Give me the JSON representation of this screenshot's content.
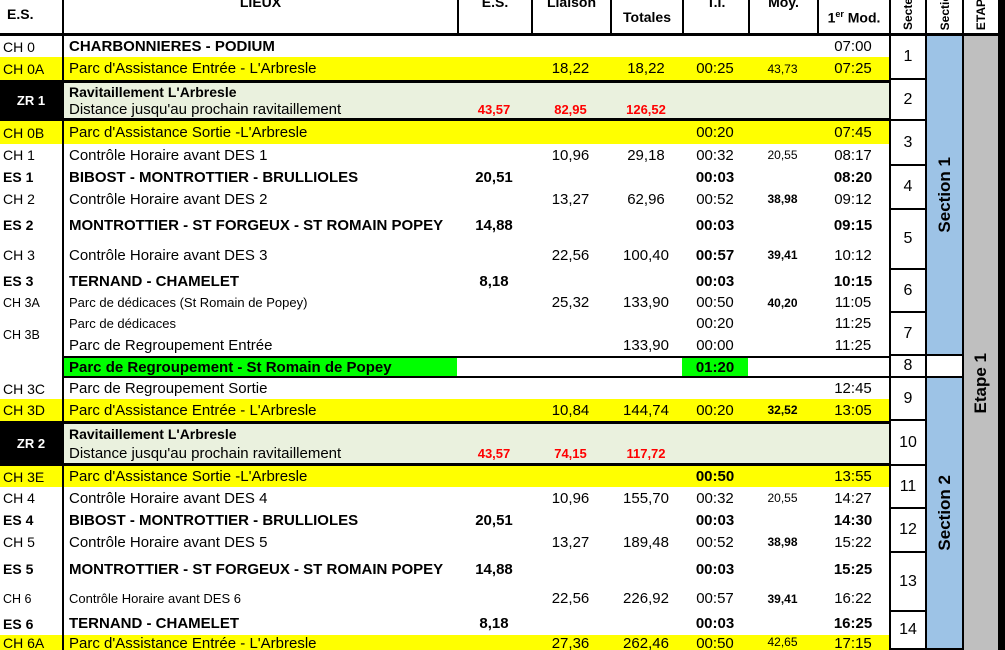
{
  "header": {
    "code": "E.S.",
    "lieux": "LIEUX",
    "es": "E.S.",
    "liaison": "Liaison",
    "totales": "Totales",
    "ti": "T.I.",
    "moy": "Moy.",
    "mod_num": "1",
    "mod_sup": "er",
    "mod_rest": " Mod.",
    "secteur": "Secteur",
    "section": "Section",
    "etape": "ETAPE"
  },
  "rows": [
    {
      "code": "CH 0",
      "lieux": "CHARBONNIERES - PODIUM",
      "mod": "07:00"
    },
    {
      "code": "CH 0A",
      "lieux": "Parc d'Assistance Entrée - L'Arbresle",
      "liaison": "18,22",
      "totales": "18,22",
      "ti": "00:25",
      "moy": "43,73",
      "mod": "07:25"
    },
    {
      "code": "ZR 1",
      "lieux": "Ravitaillement L'Arbresle",
      "lieux2": "Distance jusqu'au prochain ravitaillement",
      "es2": "43,57",
      "liaison2": "82,95",
      "totales2": "126,52"
    },
    {
      "code": "CH 0B",
      "lieux": "Parc d'Assistance Sortie -L'Arbresle",
      "ti": "00:20",
      "mod": "07:45"
    },
    {
      "code": "CH 1",
      "lieux": "Contrôle Horaire avant DES 1",
      "liaison": "10,96",
      "totales": "29,18",
      "ti": "00:32",
      "moy": "20,55",
      "mod": "08:17"
    },
    {
      "code": "ES 1",
      "lieux": "BIBOST - MONTROTTIER - BRULLIOLES",
      "es": "20,51",
      "ti": "00:03",
      "mod": "08:20"
    },
    {
      "code": "CH 2",
      "lieux": "Contrôle Horaire avant DES 2",
      "liaison": "13,27",
      "totales": "62,96",
      "ti": "00:52",
      "moy": "38,98",
      "mod": "09:12"
    },
    {
      "code": "ES 2",
      "lieux": "MONTROTTIER - ST FORGEUX - ST ROMAIN POPEY",
      "es": "14,88",
      "ti": "00:03",
      "mod": "09:15"
    },
    {
      "code": "CH 3",
      "lieux": "Contrôle Horaire avant DES 3",
      "liaison": "22,56",
      "totales": "100,40",
      "ti": "00:57",
      "moy": "39,41",
      "mod": "10:12"
    },
    {
      "code": "ES 3",
      "lieux": "TERNAND - CHAMELET",
      "es": "8,18",
      "ti": "00:03",
      "mod": "10:15"
    },
    {
      "code": "CH 3A",
      "lieux": "Parc de dédicaces (St Romain de Popey)",
      "liaison": "25,32",
      "totales": "133,90",
      "ti": "00:50",
      "moy": "40,20",
      "mod": "11:05"
    },
    {
      "code": "CH 3B",
      "lieux": "Parc de dédicaces",
      "ti": "00:20",
      "mod": "11:25",
      "lieux2": "Parc de Regroupement Entrée",
      "totales2": "133,90",
      "ti2": "00:00",
      "mod2": "11:25"
    },
    {
      "code": "",
      "lieux": "Parc de Regroupement - St Romain de Popey",
      "ti": "01:20"
    },
    {
      "code": "CH 3C",
      "lieux": "Parc de Regroupement Sortie",
      "mod": "12:45"
    },
    {
      "code": "CH 3D",
      "lieux": "Parc d'Assistance Entrée - L'Arbresle",
      "liaison": "10,84",
      "totales": "144,74",
      "ti": "00:20",
      "moy": "32,52",
      "mod": "13:05"
    },
    {
      "code": "ZR 2",
      "lieux": "Ravitaillement L'Arbresle",
      "lieux2": "Distance jusqu'au prochain ravitaillement",
      "es2": "43,57",
      "liaison2": "74,15",
      "totales2": "117,72"
    },
    {
      "code": "CH 3E",
      "lieux": "Parc d'Assistance Sortie -L'Arbresle",
      "ti": "00:50",
      "mod": "13:55"
    },
    {
      "code": "CH 4",
      "lieux": "Contrôle Horaire avant DES 4",
      "liaison": "10,96",
      "totales": "155,70",
      "ti": "00:32",
      "moy": "20,55",
      "mod": "14:27"
    },
    {
      "code": "ES 4",
      "lieux": "BIBOST - MONTROTTIER - BRULLIOLES",
      "es": "20,51",
      "ti": "00:03",
      "mod": "14:30"
    },
    {
      "code": "CH 5",
      "lieux": "Contrôle Horaire avant DES 5",
      "liaison": "13,27",
      "totales": "189,48",
      "ti": "00:52",
      "moy": "38,98",
      "mod": "15:22"
    },
    {
      "code": "ES 5",
      "lieux": "MONTROTTIER - ST FORGEUX - ST ROMAIN POPEY",
      "es": "14,88",
      "ti": "00:03",
      "mod": "15:25"
    },
    {
      "code": "CH 6",
      "lieux": "Contrôle Horaire avant DES 6",
      "liaison": "22,56",
      "totales": "226,92",
      "ti": "00:57",
      "moy": "39,41",
      "mod": "16:22"
    },
    {
      "code": "ES 6",
      "lieux": "TERNAND - CHAMELET",
      "es": "8,18",
      "ti": "00:03",
      "mod": "16:25"
    },
    {
      "code": "CH 6A",
      "lieux": "Parc d'Assistance Entrée - L'Arbresle",
      "liaison": "27,36",
      "totales": "262,46",
      "ti": "00:50",
      "moy": "42,65",
      "mod": "17:15"
    }
  ],
  "secteurs": [
    "1",
    "2",
    "3",
    "4",
    "5",
    "6",
    "7",
    "8",
    "9",
    "10",
    "11",
    "12",
    "13",
    "14"
  ],
  "sections": [
    {
      "label": "Section 1"
    },
    {
      "label": "Section 2"
    }
  ],
  "etape": {
    "label": "Etape 1"
  },
  "colors": {
    "highlight_yellow": "#FFFF00",
    "regroup_green": "#00FF00",
    "zr_pale_green": "#EAF1DE",
    "section_blue": "#9DC3E6",
    "etape_gray": "#BFBFBF",
    "zr_values_red": "#FF0000"
  }
}
